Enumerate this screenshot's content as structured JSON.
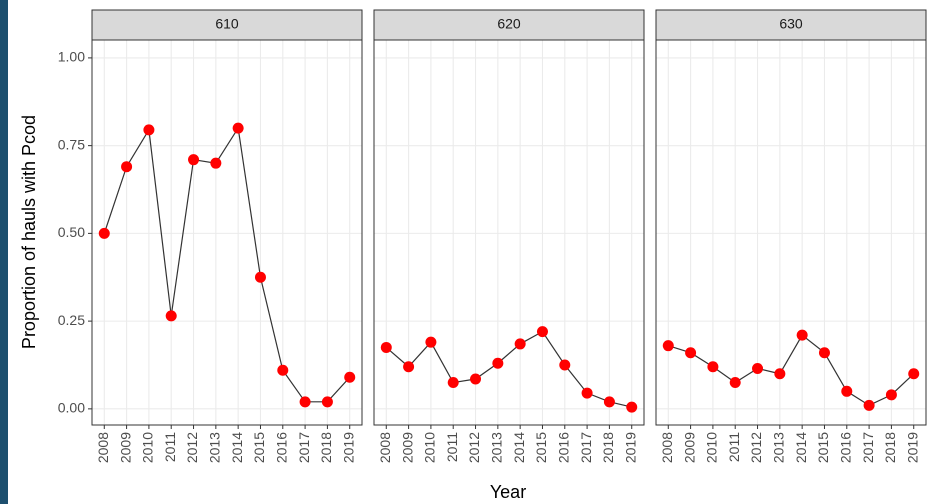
{
  "chart_data": {
    "type": "line",
    "xlabel": "Year",
    "ylabel": "Proportion of hauls with Pcod",
    "xlim": [
      2007.45,
      2019.55
    ],
    "ylim": [
      -0.046,
      1.051
    ],
    "xticks": [
      2008,
      2009,
      2010,
      2011,
      2012,
      2013,
      2014,
      2015,
      2016,
      2017,
      2018,
      2019
    ],
    "yticks": [
      {
        "value": 0,
        "label": "0.00"
      },
      {
        "value": 0.25,
        "label": "0.25"
      },
      {
        "value": 0.5,
        "label": "0.50"
      },
      {
        "value": 0.75,
        "label": "0.75"
      },
      {
        "value": 1,
        "label": "1.00"
      }
    ],
    "grid": true,
    "line_color": "#333333",
    "point_color": "#ff0000",
    "facets": [
      {
        "title": "610",
        "x": [
          2008,
          2009,
          2010,
          2011,
          2012,
          2013,
          2014,
          2015,
          2016,
          2017,
          2018,
          2019
        ],
        "values": [
          0.5,
          0.69,
          0.795,
          0.265,
          0.71,
          0.7,
          0.8,
          0.375,
          0.11,
          0.02,
          0.02,
          0.09
        ]
      },
      {
        "title": "620",
        "x": [
          2008,
          2009,
          2010,
          2011,
          2012,
          2013,
          2014,
          2015,
          2016,
          2017,
          2018,
          2019
        ],
        "values": [
          0.175,
          0.12,
          0.19,
          0.075,
          0.085,
          0.13,
          0.185,
          0.22,
          0.125,
          0.045,
          0.02,
          0.005
        ]
      },
      {
        "title": "630",
        "x": [
          2008,
          2009,
          2010,
          2011,
          2012,
          2013,
          2014,
          2015,
          2016,
          2017,
          2018,
          2019
        ],
        "values": [
          0.18,
          0.16,
          0.12,
          0.075,
          0.115,
          0.1,
          0.21,
          0.16,
          0.05,
          0.01,
          0.04,
          0.1
        ]
      }
    ]
  }
}
